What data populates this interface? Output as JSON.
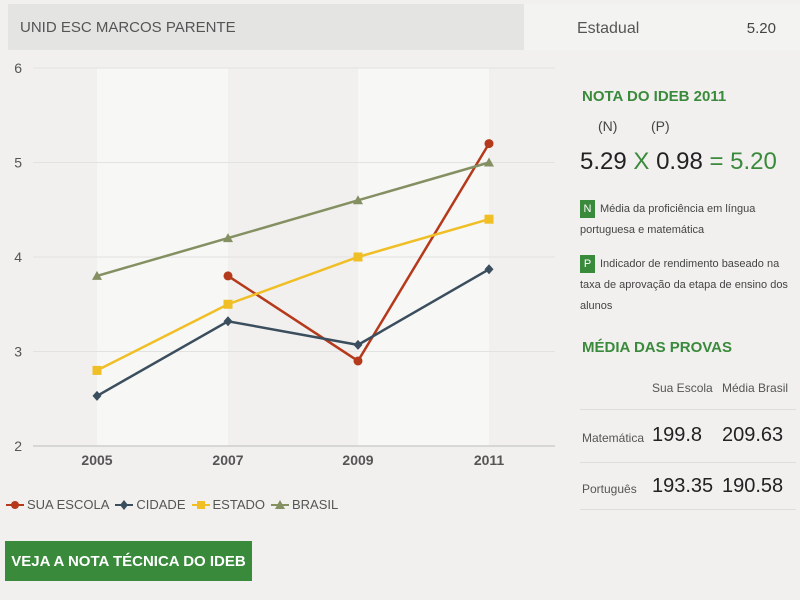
{
  "header": {
    "school": "UNID ESC MARCOS PARENTE",
    "network_label": "Estadual",
    "network_value": "5.20"
  },
  "chart_data": {
    "type": "line",
    "categories": [
      "2005",
      "2007",
      "2009",
      "2011"
    ],
    "y_ticks": [
      "2",
      "3",
      "4",
      "5",
      "6"
    ],
    "ylim": [
      2,
      6
    ],
    "grid": true,
    "legend": "bottom-left",
    "series": [
      {
        "name": "SUA ESCOLA",
        "color": "#b5391b",
        "marker": "circle",
        "values": [
          null,
          3.8,
          2.9,
          5.2
        ]
      },
      {
        "name": "CIDADE",
        "color": "#3b4e5e",
        "marker": "diamond",
        "values": [
          2.53,
          3.32,
          3.07,
          3.87
        ]
      },
      {
        "name": "ESTADO",
        "color": "#f0be25",
        "marker": "square",
        "values": [
          2.8,
          3.5,
          4.0,
          4.4
        ]
      },
      {
        "name": "BRASIL",
        "color": "#849062",
        "marker": "triangle",
        "values": [
          3.8,
          4.2,
          4.6,
          5.0
        ]
      }
    ]
  },
  "cta_label": "VEJA A NOTA TÉCNICA DO IDEB",
  "panel": {
    "nota_title": "NOTA DO IDEB 2011",
    "n_label": "(N)",
    "p_label": "(P)",
    "n_value": "5.29",
    "times": "X",
    "p_value": "0.98",
    "equals": "= 5.20",
    "n_badge": "N",
    "n_desc": "Média da proficiência em língua portuguesa e matemática",
    "p_badge": "P",
    "p_desc": "Indicador de rendimento baseado na taxa de aprovação da etapa de ensino dos alunos",
    "media_title": "MÉDIA DAS PROVAS",
    "col_school": "Sua Escola",
    "col_brasil": "Média Brasil",
    "rows": [
      {
        "label": "Matemática",
        "school": "199.8",
        "brasil": "209.63"
      },
      {
        "label": "Português",
        "school": "193.35",
        "brasil": "190.58"
      }
    ]
  }
}
